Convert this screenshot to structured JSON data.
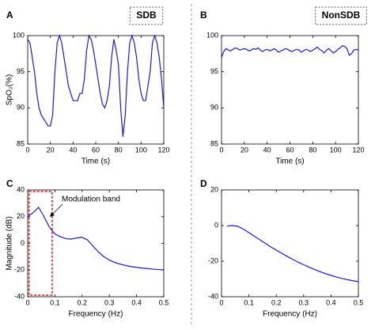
{
  "chart_data": [
    {
      "type": "line",
      "panel_label": "A",
      "title": "SDB",
      "xlabel": "Time (s)",
      "ylabel": "SpO₂(%)",
      "color": "#1a1ad8",
      "xlim": [
        0,
        120
      ],
      "xticks": [
        0,
        20,
        40,
        60,
        80,
        100,
        120
      ],
      "ylim": [
        85,
        100
      ],
      "yticks": [
        85,
        90,
        95,
        100
      ],
      "grid": false,
      "x": [
        0,
        2,
        4,
        6,
        8,
        10,
        12,
        14,
        16,
        18,
        20,
        22,
        24,
        26,
        28,
        30,
        32,
        34,
        36,
        38,
        40,
        42,
        44,
        46,
        48,
        50,
        52,
        54,
        56,
        58,
        60,
        62,
        64,
        66,
        68,
        70,
        72,
        74,
        76,
        78,
        80,
        82,
        84,
        86,
        88,
        90,
        92,
        94,
        96,
        98,
        100,
        102,
        104,
        106,
        108,
        110,
        112,
        114,
        116,
        118,
        120
      ],
      "values": [
        99.5,
        99,
        97,
        95,
        92,
        90,
        89,
        88.5,
        88,
        87.5,
        87.5,
        89,
        95,
        99,
        100,
        99,
        97,
        95,
        93,
        92,
        91,
        91,
        91,
        92,
        92,
        94,
        98,
        100,
        99.5,
        98,
        96,
        94,
        92,
        90.5,
        90,
        91,
        93,
        97,
        99.5,
        98,
        96,
        90,
        86,
        89,
        95,
        99,
        100,
        99,
        97,
        94,
        92,
        91,
        91,
        93,
        95,
        99,
        100,
        99,
        97,
        94,
        90
      ]
    },
    {
      "type": "line",
      "panel_label": "B",
      "title": "NonSDB",
      "xlabel": "Time (s)",
      "color": "#1a1ad8",
      "xlim": [
        0,
        120
      ],
      "xticks": [
        0,
        20,
        40,
        60,
        80,
        100,
        120
      ],
      "ylim": [
        85,
        100
      ],
      "yticks": [
        85,
        90,
        95,
        100
      ],
      "grid": false,
      "x": [
        0,
        2,
        4,
        6,
        8,
        10,
        12,
        14,
        16,
        18,
        20,
        22,
        24,
        26,
        28,
        30,
        32,
        34,
        36,
        38,
        40,
        42,
        44,
        46,
        48,
        50,
        52,
        54,
        56,
        58,
        60,
        62,
        64,
        66,
        68,
        70,
        72,
        74,
        76,
        78,
        80,
        82,
        84,
        86,
        88,
        90,
        92,
        94,
        96,
        98,
        100,
        102,
        104,
        106,
        108,
        110,
        112,
        114,
        116,
        118,
        120
      ],
      "values": [
        97,
        97.8,
        98.2,
        98,
        97.9,
        98.1,
        98.3,
        98.2,
        98,
        98.1,
        98.2,
        98.1,
        97.9,
        98,
        98.2,
        98.1,
        98.3,
        98,
        97.8,
        98,
        98.1,
        97.9,
        98,
        98.2,
        98,
        97.7,
        97.9,
        98,
        98.2,
        98.1,
        97.9,
        97.8,
        98,
        98.1,
        98,
        97.7,
        97.9,
        98.1,
        98,
        97.8,
        98,
        98.2,
        98.4,
        98.1,
        97.9,
        97.6,
        98,
        98.2,
        97.9,
        97.6,
        97.8,
        98.1,
        98.3,
        98.6,
        98.5,
        98.2,
        97.3,
        97.5,
        98,
        98.1,
        98
      ]
    },
    {
      "type": "line",
      "panel_label": "C",
      "xlabel": "Frequency (Hz)",
      "ylabel": "Magnitude (dB)",
      "color": "#1a1ad8",
      "annotation": "Modulation band",
      "band": [
        0.005,
        0.09
      ],
      "band_color": "#e8141e",
      "xlim": [
        0,
        0.5
      ],
      "xticks": [
        0,
        0.1,
        0.2,
        0.3,
        0.4,
        0.5
      ],
      "ylim": [
        -40,
        40
      ],
      "yticks": [
        -40,
        -20,
        0,
        20,
        40
      ],
      "grid": false,
      "x": [
        0,
        0.02,
        0.04,
        0.06,
        0.08,
        0.1,
        0.12,
        0.14,
        0.16,
        0.18,
        0.2,
        0.22,
        0.24,
        0.26,
        0.28,
        0.3,
        0.32,
        0.34,
        0.36,
        0.38,
        0.4,
        0.42,
        0.44,
        0.46,
        0.48,
        0.5
      ],
      "values": [
        20,
        23,
        27,
        20,
        12,
        7,
        5,
        3.5,
        3.2,
        4,
        4.5,
        2.5,
        -2,
        -6.5,
        -10,
        -12.5,
        -14.3,
        -15.6,
        -16.6,
        -17.4,
        -18,
        -18.5,
        -18.9,
        -19.3,
        -19.6,
        -19.9
      ]
    },
    {
      "type": "line",
      "panel_label": "D",
      "xlabel": "Frequency (Hz)",
      "color": "#1a1ad8",
      "xlim": [
        0,
        0.5
      ],
      "xticks": [
        0,
        0.1,
        0.2,
        0.3,
        0.4,
        0.5
      ],
      "ylim": [
        -40,
        20
      ],
      "yticks": [
        -40,
        -20,
        0,
        20
      ],
      "grid": false,
      "x": [
        0.02,
        0.04,
        0.06,
        0.08,
        0.1,
        0.12,
        0.14,
        0.16,
        0.18,
        0.2,
        0.22,
        0.24,
        0.26,
        0.28,
        0.3,
        0.32,
        0.34,
        0.36,
        0.38,
        0.4,
        0.42,
        0.44,
        0.46,
        0.48,
        0.5
      ],
      "values": [
        -0.3,
        0,
        -0.5,
        -2,
        -4,
        -6,
        -8,
        -10,
        -12,
        -13.8,
        -15.6,
        -17.3,
        -19,
        -20.6,
        -22,
        -23.4,
        -24.7,
        -25.9,
        -27,
        -28,
        -28.9,
        -29.7,
        -30.4,
        -31,
        -31.5
      ]
    }
  ]
}
